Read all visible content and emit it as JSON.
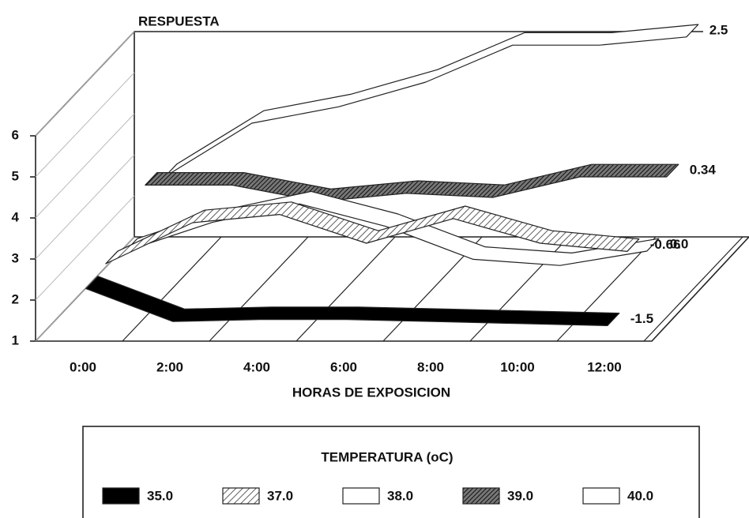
{
  "chart_data": {
    "type": "ribbon3d",
    "y_label": "RESPUESTA",
    "x_label": "HORAS DE EXPOSICION",
    "legend_title": "TEMPERATURA (oC)",
    "categories": [
      "0:00",
      "2:00",
      "4:00",
      "6:00",
      "8:00",
      "10:00",
      "12:00"
    ],
    "ylim": [
      1,
      6
    ],
    "yticks": [
      1,
      2,
      3,
      4,
      5,
      6
    ],
    "series": [
      {
        "name": "35.0",
        "color": "#000000",
        "end_label": "-1.5",
        "values": [
          2.2,
          1.4,
          1.45,
          1.45,
          1.4,
          1.35,
          1.3
        ]
      },
      {
        "name": "37.0",
        "color": "#9a9a9a",
        "end_label": "-0.66",
        "values": [
          2.3,
          3.3,
          3.5,
          2.8,
          3.4,
          2.8,
          2.6
        ]
      },
      {
        "name": "38.0",
        "color": "#ffffff",
        "end_label": "0.0",
        "values": [
          2.1,
          2.8,
          3.25,
          2.7,
          1.9,
          1.75,
          2.1
        ]
      },
      {
        "name": "39.0",
        "color": "#444444",
        "end_label": "0.34",
        "values": [
          3.2,
          3.2,
          2.8,
          3.0,
          2.9,
          3.4,
          3.4
        ]
      },
      {
        "name": "40.0",
        "color": "#ffffff",
        "end_label": "2.5",
        "values": [
          2.9,
          4.2,
          4.6,
          5.2,
          6.1,
          6.1,
          6.3
        ]
      }
    ]
  }
}
